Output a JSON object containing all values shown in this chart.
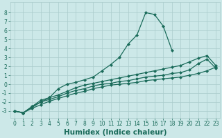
{
  "lines": [
    {
      "x": [
        0,
        1,
        2,
        3,
        4,
        5,
        6,
        7,
        8,
        9,
        10,
        11,
        12,
        13,
        14,
        15,
        16,
        17,
        18
      ],
      "y": [
        -3.0,
        -3.2,
        -2.5,
        -2.0,
        -1.5,
        -0.5,
        0.0,
        0.2,
        0.5,
        0.8,
        1.5,
        2.2,
        3.0,
        4.5,
        5.5,
        8.0,
        7.8,
        6.5,
        3.8
      ],
      "color": "#1a6b5a",
      "marker": "D",
      "markersize": 2.0,
      "linewidth": 0.9
    },
    {
      "x": [
        0,
        1,
        2,
        3,
        4,
        5,
        6,
        7,
        8,
        9,
        10,
        11,
        12,
        13,
        14,
        15,
        16,
        17,
        18,
        19,
        20,
        21,
        22,
        23
      ],
      "y": [
        -3.0,
        -3.2,
        -2.5,
        -1.8,
        -1.5,
        -1.2,
        -0.8,
        -0.4,
        -0.1,
        0.1,
        0.3,
        0.5,
        0.7,
        0.9,
        1.1,
        1.3,
        1.5,
        1.7,
        1.9,
        2.1,
        2.5,
        2.9,
        3.2,
        2.1
      ],
      "color": "#1a6b5a",
      "marker": "D",
      "markersize": 2.0,
      "linewidth": 0.9
    },
    {
      "x": [
        0,
        1,
        2,
        3,
        4,
        5,
        6,
        7,
        8,
        9,
        10,
        11,
        12,
        13,
        14,
        15,
        16,
        17,
        18,
        19,
        20,
        21,
        22,
        23
      ],
      "y": [
        -3.0,
        -3.2,
        -2.6,
        -2.0,
        -1.7,
        -1.4,
        -1.0,
        -0.7,
        -0.5,
        -0.2,
        0.0,
        0.1,
        0.3,
        0.4,
        0.6,
        0.8,
        0.9,
        1.0,
        1.2,
        1.3,
        1.6,
        2.3,
        2.8,
        1.8
      ],
      "color": "#1a6b5a",
      "marker": "D",
      "markersize": 2.0,
      "linewidth": 0.9
    },
    {
      "x": [
        0,
        1,
        2,
        3,
        4,
        5,
        6,
        7,
        8,
        9,
        10,
        11,
        12,
        13,
        14,
        15,
        16,
        17,
        18,
        19,
        20,
        21,
        22,
        23
      ],
      "y": [
        -3.0,
        -3.2,
        -2.7,
        -2.3,
        -1.9,
        -1.6,
        -1.3,
        -1.0,
        -0.8,
        -0.5,
        -0.3,
        -0.1,
        0.0,
        0.1,
        0.2,
        0.4,
        0.5,
        0.6,
        0.7,
        0.8,
        1.0,
        1.2,
        1.5,
        1.9
      ],
      "color": "#1a6b5a",
      "marker": "D",
      "markersize": 2.0,
      "linewidth": 0.9
    }
  ],
  "xlabel": "Humidex (Indice chaleur)",
  "xlim": [
    -0.5,
    23.5
  ],
  "ylim": [
    -3.8,
    9.2
  ],
  "yticks": [
    -3,
    -2,
    -1,
    0,
    1,
    2,
    3,
    4,
    5,
    6,
    7,
    8
  ],
  "xticks": [
    0,
    1,
    2,
    3,
    4,
    5,
    6,
    7,
    8,
    9,
    10,
    11,
    12,
    13,
    14,
    15,
    16,
    17,
    18,
    19,
    20,
    21,
    22,
    23
  ],
  "bg_color": "#cce8e8",
  "grid_color": "#aacccc",
  "line_color": "#1a6b5a",
  "tick_label_fontsize": 5.5,
  "xlabel_fontsize": 7.5
}
